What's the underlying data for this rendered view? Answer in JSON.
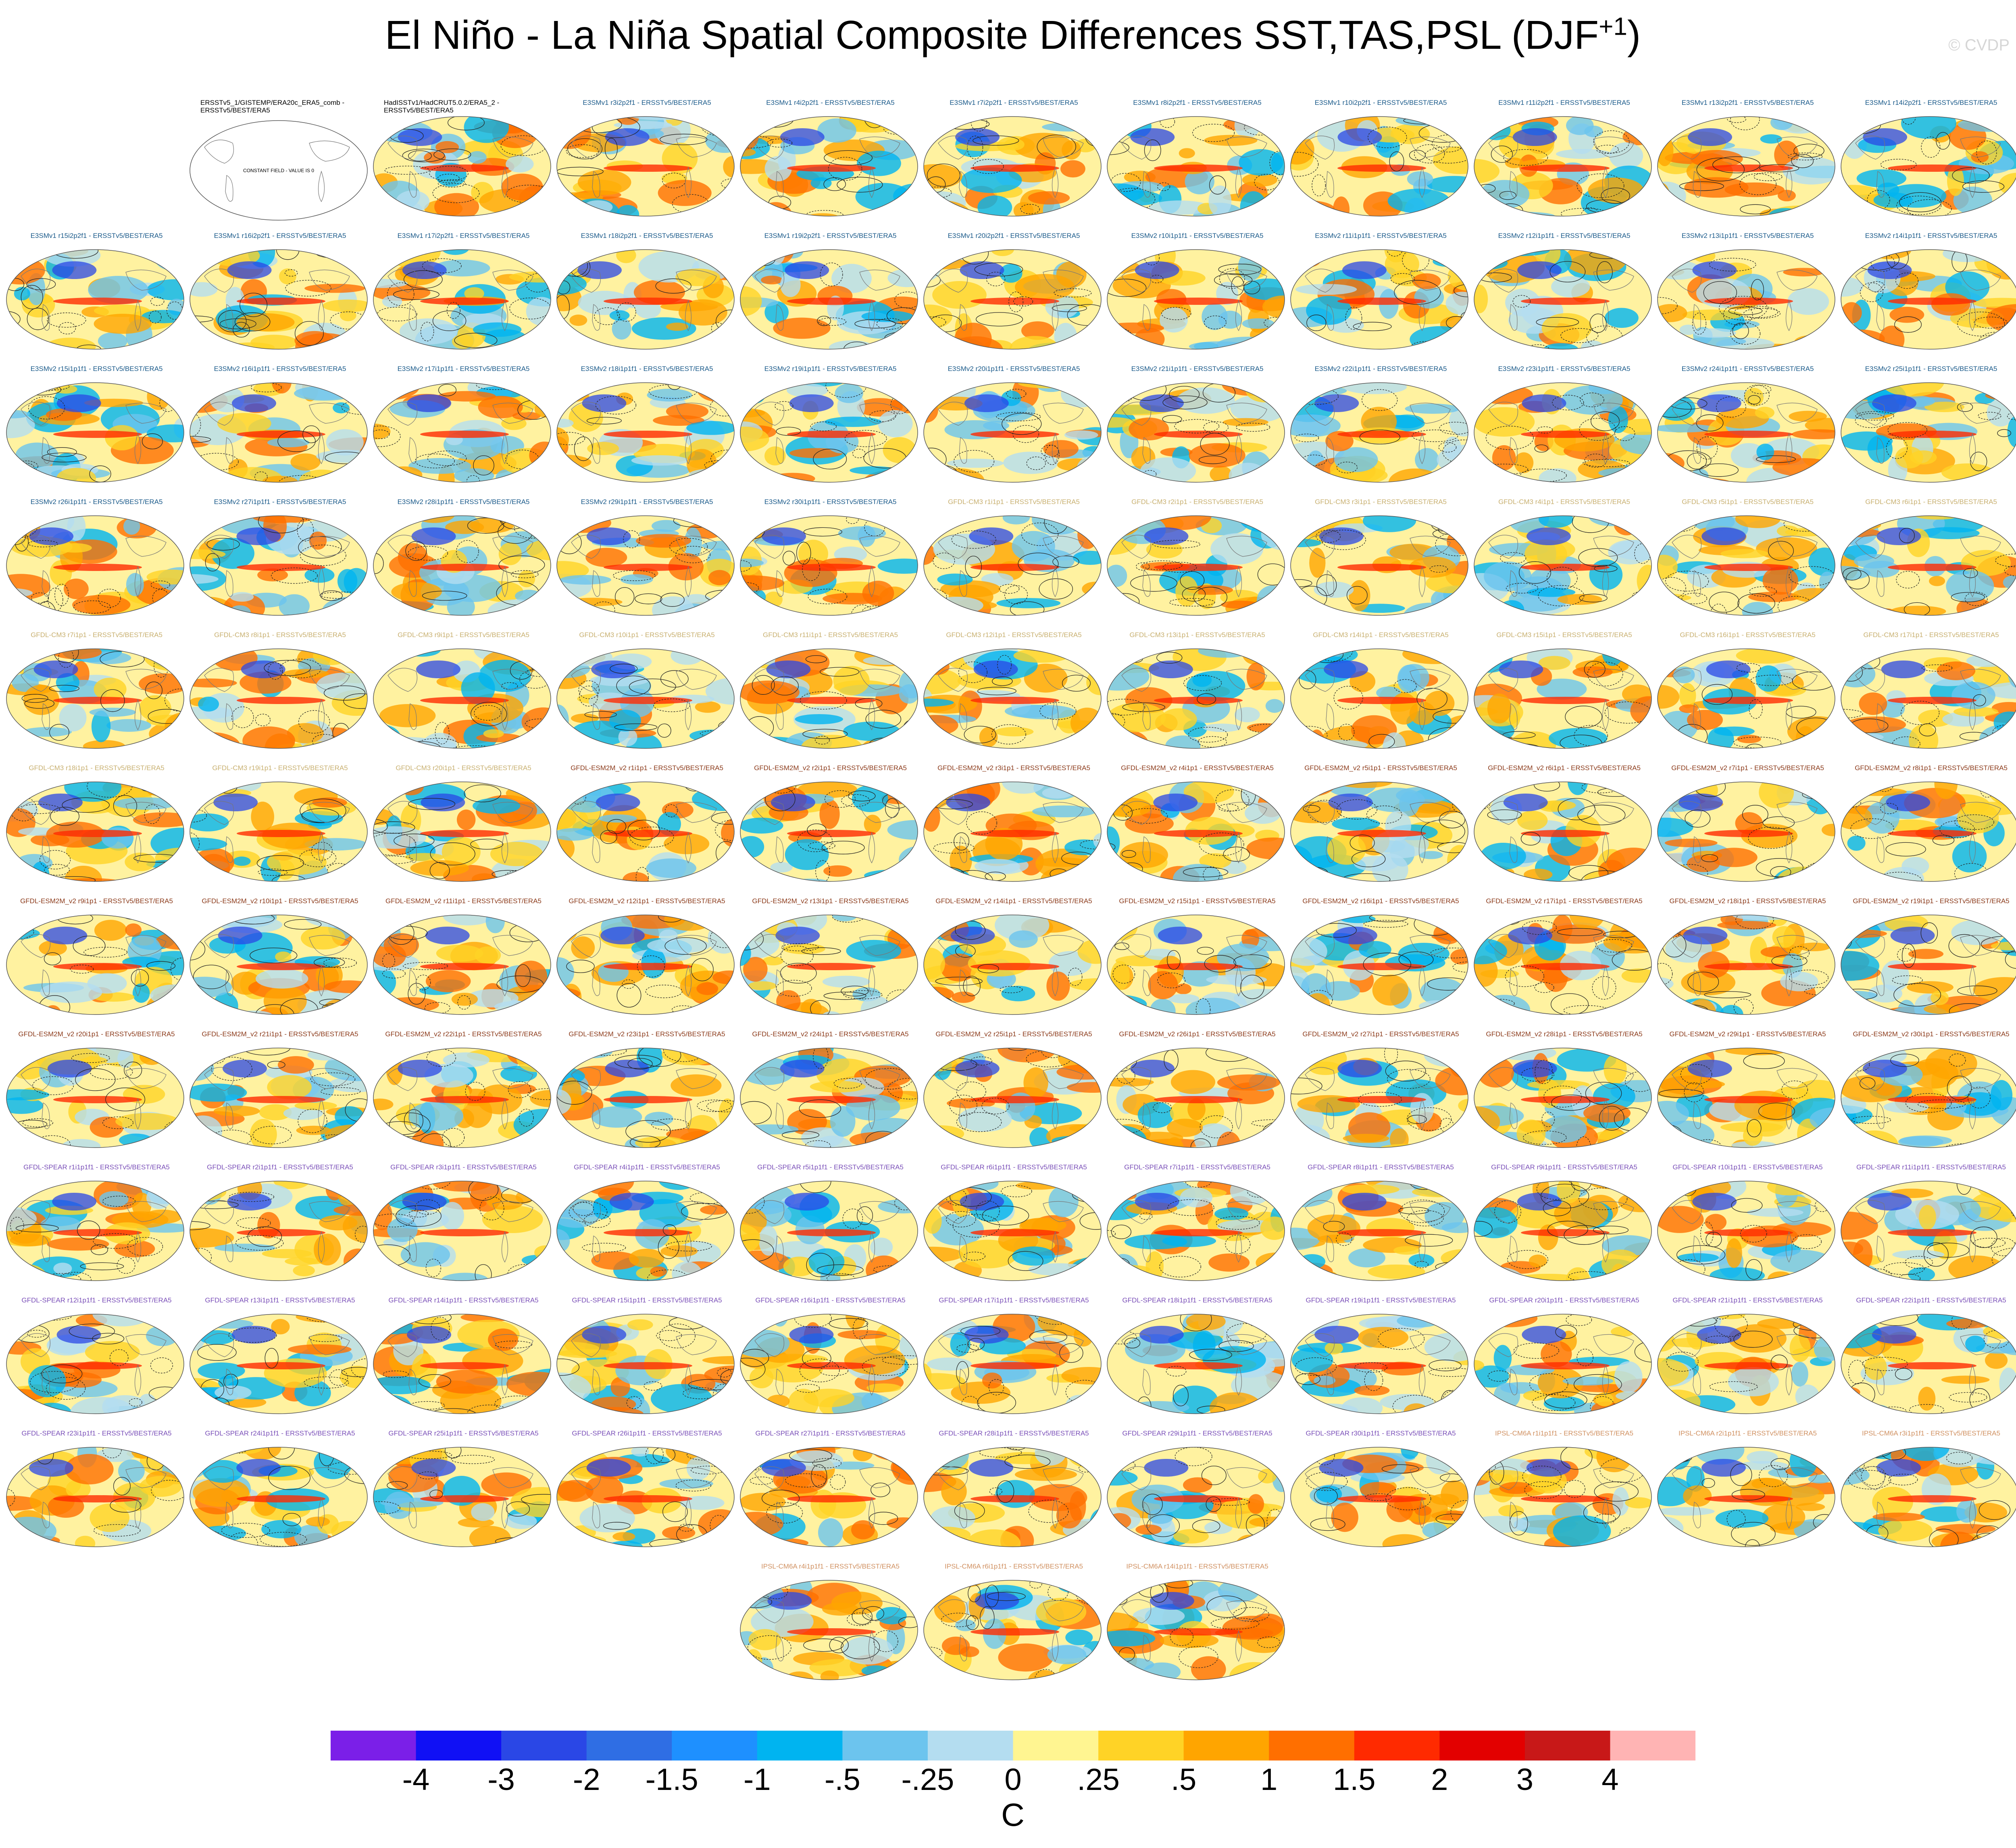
{
  "title": "El Niño - La Niña Spatial Composite Differences SST,TAS,PSL (DJF",
  "title_superscript": "+1",
  "title_close": ")",
  "watermark": "© CVDP",
  "units": "C",
  "colors": {
    "E3SM": "#1a5a8a",
    "GFDL-CM3": "#c8b070",
    "GFDL-ESM2M": "#8b3a1a",
    "GFDL-SPEAR": "#7a4fb8",
    "IPSL": "#d09060",
    "obs": "#000000"
  },
  "panels": [
    {
      "label": "ERSSTv5_1/GISTEMP/ERA20c_ERA5_comb - ERSSTv5/BEST/ERA5",
      "group": "obs",
      "constant": true,
      "constant_text": "CONSTANT FIELD - VALUE IS 0"
    },
    {
      "label": "HadISSTv1/HadCRUT5.0.2/ERA5_2 - ERSSTv5/BEST/ERA5",
      "group": "obs"
    },
    {
      "label": "E3SMv1 r3i2p2f1 - ERSSTv5/BEST/ERA5",
      "group": "E3SM"
    },
    {
      "label": "E3SMv1 r4i2p2f1 - ERSSTv5/BEST/ERA5",
      "group": "E3SM"
    },
    {
      "label": "E3SMv1 r7i2p2f1 - ERSSTv5/BEST/ERA5",
      "group": "E3SM"
    },
    {
      "label": "E3SMv1 r8i2p2f1 - ERSSTv5/BEST/ERA5",
      "group": "E3SM"
    },
    {
      "label": "E3SMv1 r10i2p2f1 - ERSSTv5/BEST/ERA5",
      "group": "E3SM"
    },
    {
      "label": "E3SMv1 r11i2p2f1 - ERSSTv5/BEST/ERA5",
      "group": "E3SM"
    },
    {
      "label": "E3SMv1 r13i2p2f1 - ERSSTv5/BEST/ERA5",
      "group": "E3SM"
    },
    {
      "label": "E3SMv1 r14i2p2f1 - ERSSTv5/BEST/ERA5",
      "group": "E3SM"
    },
    {
      "label": "E3SMv1 r15i2p2f1 - ERSSTv5/BEST/ERA5",
      "group": "E3SM"
    },
    {
      "label": "E3SMv1 r16i2p2f1 - ERSSTv5/BEST/ERA5",
      "group": "E3SM"
    },
    {
      "label": "E3SMv1 r17i2p2f1 - ERSSTv5/BEST/ERA5",
      "group": "E3SM"
    },
    {
      "label": "E3SMv1 r18i2p2f1 - ERSSTv5/BEST/ERA5",
      "group": "E3SM"
    },
    {
      "label": "E3SMv1 r19i2p2f1 - ERSSTv5/BEST/ERA5",
      "group": "E3SM"
    },
    {
      "label": "E3SMv1 r20i2p2f1 - ERSSTv5/BEST/ERA5",
      "group": "E3SM"
    },
    {
      "label": "E3SMv2 r10i1p1f1 - ERSSTv5/BEST/ERA5",
      "group": "E3SM"
    },
    {
      "label": "E3SMv2 r11i1p1f1 - ERSSTv5/BEST/ERA5",
      "group": "E3SM"
    },
    {
      "label": "E3SMv2 r12i1p1f1 - ERSSTv5/BEST/ERA5",
      "group": "E3SM"
    },
    {
      "label": "E3SMv2 r13i1p1f1 - ERSSTv5/BEST/ERA5",
      "group": "E3SM"
    },
    {
      "label": "E3SMv2 r14i1p1f1 - ERSSTv5/BEST/ERA5",
      "group": "E3SM"
    },
    {
      "label": "E3SMv2 r15i1p1f1 - ERSSTv5/BEST/ERA5",
      "group": "E3SM"
    },
    {
      "label": "E3SMv2 r16i1p1f1 - ERSSTv5/BEST/ERA5",
      "group": "E3SM"
    },
    {
      "label": "E3SMv2 r17i1p1f1 - ERSSTv5/BEST/ERA5",
      "group": "E3SM"
    },
    {
      "label": "E3SMv2 r18i1p1f1 - ERSSTv5/BEST/ERA5",
      "group": "E3SM"
    },
    {
      "label": "E3SMv2 r19i1p1f1 - ERSSTv5/BEST/ERA5",
      "group": "E3SM"
    },
    {
      "label": "E3SMv2 r20i1p1f1 - ERSSTv5/BEST/ERA5",
      "group": "E3SM"
    },
    {
      "label": "E3SMv2 r21i1p1f1 - ERSSTv5/BEST/ERA5",
      "group": "E3SM"
    },
    {
      "label": "E3SMv2 r22i1p1f1 - ERSSTv5/BEST/ERA5",
      "group": "E3SM"
    },
    {
      "label": "E3SMv2 r23i1p1f1 - ERSSTv5/BEST/ERA5",
      "group": "E3SM"
    },
    {
      "label": "E3SMv2 r24i1p1f1 - ERSSTv5/BEST/ERA5",
      "group": "E3SM"
    },
    {
      "label": "E3SMv2 r25i1p1f1 - ERSSTv5/BEST/ERA5",
      "group": "E3SM"
    },
    {
      "label": "E3SMv2 r26i1p1f1 - ERSSTv5/BEST/ERA5",
      "group": "E3SM"
    },
    {
      "label": "E3SMv2 r27i1p1f1 - ERSSTv5/BEST/ERA5",
      "group": "E3SM"
    },
    {
      "label": "E3SMv2 r28i1p1f1 - ERSSTv5/BEST/ERA5",
      "group": "E3SM"
    },
    {
      "label": "E3SMv2 r29i1p1f1 - ERSSTv5/BEST/ERA5",
      "group": "E3SM"
    },
    {
      "label": "E3SMv2 r30i1p1f1 - ERSSTv5/BEST/ERA5",
      "group": "E3SM"
    },
    {
      "label": "GFDL-CM3 r1i1p1 - ERSSTv5/BEST/ERA5",
      "group": "GFDL-CM3"
    },
    {
      "label": "GFDL-CM3 r2i1p1 - ERSSTv5/BEST/ERA5",
      "group": "GFDL-CM3"
    },
    {
      "label": "GFDL-CM3 r3i1p1 - ERSSTv5/BEST/ERA5",
      "group": "GFDL-CM3"
    },
    {
      "label": "GFDL-CM3 r4i1p1 - ERSSTv5/BEST/ERA5",
      "group": "GFDL-CM3"
    },
    {
      "label": "GFDL-CM3 r5i1p1 - ERSSTv5/BEST/ERA5",
      "group": "GFDL-CM3"
    },
    {
      "label": "GFDL-CM3 r6i1p1 - ERSSTv5/BEST/ERA5",
      "group": "GFDL-CM3"
    },
    {
      "label": "GFDL-CM3 r7i1p1 - ERSSTv5/BEST/ERA5",
      "group": "GFDL-CM3"
    },
    {
      "label": "GFDL-CM3 r8i1p1 - ERSSTv5/BEST/ERA5",
      "group": "GFDL-CM3"
    },
    {
      "label": "GFDL-CM3 r9i1p1 - ERSSTv5/BEST/ERA5",
      "group": "GFDL-CM3"
    },
    {
      "label": "GFDL-CM3 r10i1p1 - ERSSTv5/BEST/ERA5",
      "group": "GFDL-CM3"
    },
    {
      "label": "GFDL-CM3 r11i1p1 - ERSSTv5/BEST/ERA5",
      "group": "GFDL-CM3"
    },
    {
      "label": "GFDL-CM3 r12i1p1 - ERSSTv5/BEST/ERA5",
      "group": "GFDL-CM3"
    },
    {
      "label": "GFDL-CM3 r13i1p1 - ERSSTv5/BEST/ERA5",
      "group": "GFDL-CM3"
    },
    {
      "label": "GFDL-CM3 r14i1p1 - ERSSTv5/BEST/ERA5",
      "group": "GFDL-CM3"
    },
    {
      "label": "GFDL-CM3 r15i1p1 - ERSSTv5/BEST/ERA5",
      "group": "GFDL-CM3"
    },
    {
      "label": "GFDL-CM3 r16i1p1 - ERSSTv5/BEST/ERA5",
      "group": "GFDL-CM3"
    },
    {
      "label": "GFDL-CM3 r17i1p1 - ERSSTv5/BEST/ERA5",
      "group": "GFDL-CM3"
    },
    {
      "label": "GFDL-CM3 r18i1p1 - ERSSTv5/BEST/ERA5",
      "group": "GFDL-CM3"
    },
    {
      "label": "GFDL-CM3 r19i1p1 - ERSSTv5/BEST/ERA5",
      "group": "GFDL-CM3"
    },
    {
      "label": "GFDL-CM3 r20i1p1 - ERSSTv5/BEST/ERA5",
      "group": "GFDL-CM3"
    },
    {
      "label": "GFDL-ESM2M_v2 r1i1p1 - ERSSTv5/BEST/ERA5",
      "group": "GFDL-ESM2M"
    },
    {
      "label": "GFDL-ESM2M_v2 r2i1p1 - ERSSTv5/BEST/ERA5",
      "group": "GFDL-ESM2M"
    },
    {
      "label": "GFDL-ESM2M_v2 r3i1p1 - ERSSTv5/BEST/ERA5",
      "group": "GFDL-ESM2M"
    },
    {
      "label": "GFDL-ESM2M_v2 r4i1p1 - ERSSTv5/BEST/ERA5",
      "group": "GFDL-ESM2M"
    },
    {
      "label": "GFDL-ESM2M_v2 r5i1p1 - ERSSTv5/BEST/ERA5",
      "group": "GFDL-ESM2M"
    },
    {
      "label": "GFDL-ESM2M_v2 r6i1p1 - ERSSTv5/BEST/ERA5",
      "group": "GFDL-ESM2M"
    },
    {
      "label": "GFDL-ESM2M_v2 r7i1p1 - ERSSTv5/BEST/ERA5",
      "group": "GFDL-ESM2M"
    },
    {
      "label": "GFDL-ESM2M_v2 r8i1p1 - ERSSTv5/BEST/ERA5",
      "group": "GFDL-ESM2M"
    },
    {
      "label": "GFDL-ESM2M_v2 r9i1p1 - ERSSTv5/BEST/ERA5",
      "group": "GFDL-ESM2M"
    },
    {
      "label": "GFDL-ESM2M_v2 r10i1p1 - ERSSTv5/BEST/ERA5",
      "group": "GFDL-ESM2M"
    },
    {
      "label": "GFDL-ESM2M_v2 r11i1p1 - ERSSTv5/BEST/ERA5",
      "group": "GFDL-ESM2M"
    },
    {
      "label": "GFDL-ESM2M_v2 r12i1p1 - ERSSTv5/BEST/ERA5",
      "group": "GFDL-ESM2M"
    },
    {
      "label": "GFDL-ESM2M_v2 r13i1p1 - ERSSTv5/BEST/ERA5",
      "group": "GFDL-ESM2M"
    },
    {
      "label": "GFDL-ESM2M_v2 r14i1p1 - ERSSTv5/BEST/ERA5",
      "group": "GFDL-ESM2M"
    },
    {
      "label": "GFDL-ESM2M_v2 r15i1p1 - ERSSTv5/BEST/ERA5",
      "group": "GFDL-ESM2M"
    },
    {
      "label": "GFDL-ESM2M_v2 r16i1p1 - ERSSTv5/BEST/ERA5",
      "group": "GFDL-ESM2M"
    },
    {
      "label": "GFDL-ESM2M_v2 r17i1p1 - ERSSTv5/BEST/ERA5",
      "group": "GFDL-ESM2M"
    },
    {
      "label": "GFDL-ESM2M_v2 r18i1p1 - ERSSTv5/BEST/ERA5",
      "group": "GFDL-ESM2M"
    },
    {
      "label": "GFDL-ESM2M_v2 r19i1p1 - ERSSTv5/BEST/ERA5",
      "group": "GFDL-ESM2M"
    },
    {
      "label": "GFDL-ESM2M_v2 r20i1p1 - ERSSTv5/BEST/ERA5",
      "group": "GFDL-ESM2M"
    },
    {
      "label": "GFDL-ESM2M_v2 r21i1p1 - ERSSTv5/BEST/ERA5",
      "group": "GFDL-ESM2M"
    },
    {
      "label": "GFDL-ESM2M_v2 r22i1p1 - ERSSTv5/BEST/ERA5",
      "group": "GFDL-ESM2M"
    },
    {
      "label": "GFDL-ESM2M_v2 r23i1p1 - ERSSTv5/BEST/ERA5",
      "group": "GFDL-ESM2M"
    },
    {
      "label": "GFDL-ESM2M_v2 r24i1p1 - ERSSTv5/BEST/ERA5",
      "group": "GFDL-ESM2M"
    },
    {
      "label": "GFDL-ESM2M_v2 r25i1p1 - ERSSTv5/BEST/ERA5",
      "group": "GFDL-ESM2M"
    },
    {
      "label": "GFDL-ESM2M_v2 r26i1p1 - ERSSTv5/BEST/ERA5",
      "group": "GFDL-ESM2M"
    },
    {
      "label": "GFDL-ESM2M_v2 r27i1p1 - ERSSTv5/BEST/ERA5",
      "group": "GFDL-ESM2M"
    },
    {
      "label": "GFDL-ESM2M_v2 r28i1p1 - ERSSTv5/BEST/ERA5",
      "group": "GFDL-ESM2M"
    },
    {
      "label": "GFDL-ESM2M_v2 r29i1p1 - ERSSTv5/BEST/ERA5",
      "group": "GFDL-ESM2M"
    },
    {
      "label": "GFDL-ESM2M_v2 r30i1p1 - ERSSTv5/BEST/ERA5",
      "group": "GFDL-ESM2M"
    },
    {
      "label": "GFDL-SPEAR r1i1p1f1 - ERSSTv5/BEST/ERA5",
      "group": "GFDL-SPEAR"
    },
    {
      "label": "GFDL-SPEAR r2i1p1f1 - ERSSTv5/BEST/ERA5",
      "group": "GFDL-SPEAR"
    },
    {
      "label": "GFDL-SPEAR r3i1p1f1 - ERSSTv5/BEST/ERA5",
      "group": "GFDL-SPEAR"
    },
    {
      "label": "GFDL-SPEAR r4i1p1f1 - ERSSTv5/BEST/ERA5",
      "group": "GFDL-SPEAR"
    },
    {
      "label": "GFDL-SPEAR r5i1p1f1 - ERSSTv5/BEST/ERA5",
      "group": "GFDL-SPEAR"
    },
    {
      "label": "GFDL-SPEAR r6i1p1f1 - ERSSTv5/BEST/ERA5",
      "group": "GFDL-SPEAR"
    },
    {
      "label": "GFDL-SPEAR r7i1p1f1 - ERSSTv5/BEST/ERA5",
      "group": "GFDL-SPEAR"
    },
    {
      "label": "GFDL-SPEAR r8i1p1f1 - ERSSTv5/BEST/ERA5",
      "group": "GFDL-SPEAR"
    },
    {
      "label": "GFDL-SPEAR r9i1p1f1 - ERSSTv5/BEST/ERA5",
      "group": "GFDL-SPEAR"
    },
    {
      "label": "GFDL-SPEAR r10i1p1f1 - ERSSTv5/BEST/ERA5",
      "group": "GFDL-SPEAR"
    },
    {
      "label": "GFDL-SPEAR r11i1p1f1 - ERSSTv5/BEST/ERA5",
      "group": "GFDL-SPEAR"
    },
    {
      "label": "GFDL-SPEAR r12i1p1f1 - ERSSTv5/BEST/ERA5",
      "group": "GFDL-SPEAR"
    },
    {
      "label": "GFDL-SPEAR r13i1p1f1 - ERSSTv5/BEST/ERA5",
      "group": "GFDL-SPEAR"
    },
    {
      "label": "GFDL-SPEAR r14i1p1f1 - ERSSTv5/BEST/ERA5",
      "group": "GFDL-SPEAR"
    },
    {
      "label": "GFDL-SPEAR r15i1p1f1 - ERSSTv5/BEST/ERA5",
      "group": "GFDL-SPEAR"
    },
    {
      "label": "GFDL-SPEAR r16i1p1f1 - ERSSTv5/BEST/ERA5",
      "group": "GFDL-SPEAR"
    },
    {
      "label": "GFDL-SPEAR r17i1p1f1 - ERSSTv5/BEST/ERA5",
      "group": "GFDL-SPEAR"
    },
    {
      "label": "GFDL-SPEAR r18i1p1f1 - ERSSTv5/BEST/ERA5",
      "group": "GFDL-SPEAR"
    },
    {
      "label": "GFDL-SPEAR r19i1p1f1 - ERSSTv5/BEST/ERA5",
      "group": "GFDL-SPEAR"
    },
    {
      "label": "GFDL-SPEAR r20i1p1f1 - ERSSTv5/BEST/ERA5",
      "group": "GFDL-SPEAR"
    },
    {
      "label": "GFDL-SPEAR r21i1p1f1 - ERSSTv5/BEST/ERA5",
      "group": "GFDL-SPEAR"
    },
    {
      "label": "GFDL-SPEAR r22i1p1f1 - ERSSTv5/BEST/ERA5",
      "group": "GFDL-SPEAR"
    },
    {
      "label": "GFDL-SPEAR r23i1p1f1 - ERSSTv5/BEST/ERA5",
      "group": "GFDL-SPEAR"
    },
    {
      "label": "GFDL-SPEAR r24i1p1f1 - ERSSTv5/BEST/ERA5",
      "group": "GFDL-SPEAR"
    },
    {
      "label": "GFDL-SPEAR r25i1p1f1 - ERSSTv5/BEST/ERA5",
      "group": "GFDL-SPEAR"
    },
    {
      "label": "GFDL-SPEAR r26i1p1f1 - ERSSTv5/BEST/ERA5",
      "group": "GFDL-SPEAR"
    },
    {
      "label": "GFDL-SPEAR r27i1p1f1 - ERSSTv5/BEST/ERA5",
      "group": "GFDL-SPEAR"
    },
    {
      "label": "GFDL-SPEAR r28i1p1f1 - ERSSTv5/BEST/ERA5",
      "group": "GFDL-SPEAR"
    },
    {
      "label": "GFDL-SPEAR r29i1p1f1 - ERSSTv5/BEST/ERA5",
      "group": "GFDL-SPEAR"
    },
    {
      "label": "GFDL-SPEAR r30i1p1f1 - ERSSTv5/BEST/ERA5",
      "group": "GFDL-SPEAR"
    },
    {
      "label": "IPSL-CM6A r1i1p1f1 - ERSSTv5/BEST/ERA5",
      "group": "IPSL"
    },
    {
      "label": "IPSL-CM6A r2i1p1f1 - ERSSTv5/BEST/ERA5",
      "group": "IPSL"
    },
    {
      "label": "IPSL-CM6A r3i1p1f1 - ERSSTv5/BEST/ERA5",
      "group": "IPSL"
    },
    {
      "label": "IPSL-CM6A r4i1p1f1 - ERSSTv5/BEST/ERA5",
      "group": "IPSL"
    },
    {
      "label": "IPSL-CM6A r6i1p1f1 - ERSSTv5/BEST/ERA5",
      "group": "IPSL"
    },
    {
      "label": "IPSL-CM6A r14i1p1f1 - ERSSTv5/BEST/ERA5",
      "group": "IPSL"
    }
  ],
  "chart_data": {
    "type": "heatmap",
    "title": "El Niño - La Niña Spatial Composite Differences SST,TAS,PSL (DJF+1)",
    "units": "C",
    "colorbar": {
      "tick_labels": [
        "-4",
        "-3",
        "-2",
        "-1.5",
        "-1",
        "-.5",
        "-.25",
        "0",
        ".25",
        ".5",
        "1",
        "1.5",
        "2",
        "3",
        "4"
      ],
      "colors": [
        "#7b1fe8",
        "#1010f5",
        "#2a47e6",
        "#2f6ee4",
        "#1e90ff",
        "#00b4f0",
        "#6cc4ee",
        "#b4ddf0",
        "#fff591",
        "#ffd326",
        "#ffa500",
        "#ff6f00",
        "#ff2a00",
        "#e30000",
        "#c81818",
        "#ffb4b4"
      ]
    }
  }
}
